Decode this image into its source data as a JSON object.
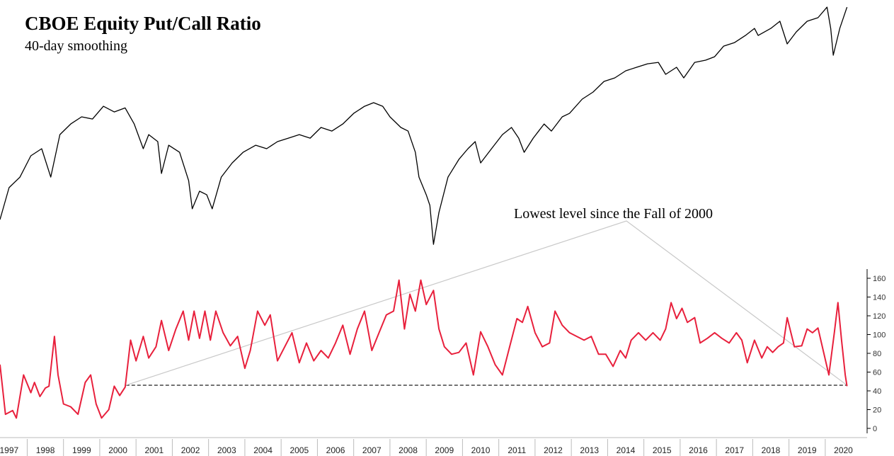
{
  "chart_data": {
    "type": "line",
    "title": "CBOE Equity Put/Call Ratio",
    "subtitle": "40-day smoothing",
    "annotation": "Lowest level since the Fall of 2000",
    "xlim": [
      1997.25,
      2020.9
    ],
    "xticks": [
      1997,
      1998,
      1999,
      2000,
      2001,
      2002,
      2003,
      2004,
      2005,
      2006,
      2007,
      2008,
      2009,
      2010,
      2011,
      2012,
      2013,
      2014,
      2015,
      2016,
      2017,
      2018,
      2019,
      2020
    ],
    "ylim": [
      0,
      160
    ],
    "yticks": [
      0,
      20,
      40,
      60,
      80,
      100,
      120,
      140,
      160
    ],
    "y2lim": [
      680,
      3400
    ],
    "y2log": true,
    "reference_line": {
      "value": 46,
      "x": [
        2000.72,
        2020.6
      ],
      "color": "#333333"
    },
    "series": [
      {
        "color": "#000000",
        "axis": "y2",
        "x": [
          1997.25,
          1997.5,
          1997.8,
          1998.1,
          1998.4,
          1998.65,
          1998.9,
          1999.2,
          1999.5,
          1999.8,
          2000.1,
          2000.4,
          2000.7,
          2000.95,
          2001.2,
          2001.35,
          2001.6,
          2001.7,
          2001.9,
          2002.2,
          2002.45,
          2002.55,
          2002.75,
          2002.95,
          2003.1,
          2003.35,
          2003.65,
          2003.95,
          2004.3,
          2004.6,
          2004.9,
          2005.2,
          2005.5,
          2005.8,
          2006.1,
          2006.4,
          2006.7,
          2007.0,
          2007.3,
          2007.55,
          2007.8,
          2008.0,
          2008.3,
          2008.5,
          2008.7,
          2008.8,
          2009.0,
          2009.1,
          2009.2,
          2009.35,
          2009.6,
          2009.9,
          2010.15,
          2010.35,
          2010.5,
          2010.8,
          2011.1,
          2011.35,
          2011.55,
          2011.7,
          2011.95,
          2012.25,
          2012.45,
          2012.75,
          2012.95,
          2013.3,
          2013.6,
          2013.9,
          2014.2,
          2014.5,
          2014.8,
          2015.1,
          2015.4,
          2015.6,
          2015.9,
          2016.1,
          2016.4,
          2016.7,
          2016.95,
          2017.2,
          2017.5,
          2017.8,
          2018.05,
          2018.15,
          2018.5,
          2018.75,
          2018.95,
          2019.2,
          2019.5,
          2019.8,
          2020.05,
          2020.15,
          2020.22,
          2020.4,
          2020.6
        ],
        "values": [
          809,
          1000,
          1073,
          1236,
          1296,
          1073,
          1423,
          1527,
          1601,
          1578,
          1718,
          1654,
          1699,
          1527,
          1296,
          1423,
          1358,
          1099,
          1326,
          1265,
          1048,
          869,
          977,
          954,
          869,
          1073,
          1179,
          1265,
          1326,
          1296,
          1358,
          1390,
          1423,
          1390,
          1492,
          1457,
          1527,
          1639,
          1718,
          1759,
          1718,
          1601,
          1492,
          1457,
          1265,
          1073,
          954,
          889,
          686,
          848,
          1073,
          1207,
          1296,
          1358,
          1179,
          1296,
          1423,
          1492,
          1390,
          1265,
          1390,
          1527,
          1457,
          1601,
          1639,
          1801,
          1888,
          2026,
          2074,
          2174,
          2226,
          2278,
          2300,
          2124,
          2226,
          2074,
          2300,
          2333,
          2388,
          2563,
          2623,
          2750,
          2883,
          2750,
          2883,
          3023,
          2600,
          2815,
          3023,
          3094,
          3320,
          2883,
          2411,
          2883,
          3320
        ]
      },
      {
        "color": "#e8203c",
        "x": [
          1997.25,
          1997.4,
          1997.6,
          1997.7,
          1997.9,
          1998.1,
          1998.2,
          1998.35,
          1998.5,
          1998.6,
          1998.75,
          1998.85,
          1999.0,
          1999.2,
          1999.4,
          1999.6,
          1999.75,
          1999.9,
          2000.05,
          2000.25,
          2000.4,
          2000.55,
          2000.7,
          2000.85,
          2001.0,
          2001.2,
          2001.35,
          2001.55,
          2001.7,
          2001.9,
          2002.1,
          2002.3,
          2002.45,
          2002.6,
          2002.75,
          2002.9,
          2003.05,
          2003.2,
          2003.4,
          2003.6,
          2003.8,
          2004.0,
          2004.15,
          2004.35,
          2004.55,
          2004.7,
          2004.9,
          2005.1,
          2005.3,
          2005.5,
          2005.7,
          2005.9,
          2006.1,
          2006.3,
          2006.5,
          2006.7,
          2006.9,
          2007.1,
          2007.3,
          2007.5,
          2007.7,
          2007.9,
          2008.1,
          2008.25,
          2008.4,
          2008.55,
          2008.7,
          2008.85,
          2009.0,
          2009.2,
          2009.35,
          2009.5,
          2009.7,
          2009.9,
          2010.1,
          2010.3,
          2010.5,
          2010.7,
          2010.9,
          2011.1,
          2011.3,
          2011.5,
          2011.65,
          2011.8,
          2012.0,
          2012.2,
          2012.4,
          2012.55,
          2012.75,
          2012.95,
          2013.15,
          2013.35,
          2013.55,
          2013.75,
          2013.95,
          2014.15,
          2014.35,
          2014.5,
          2014.65,
          2014.85,
          2015.05,
          2015.25,
          2015.45,
          2015.6,
          2015.75,
          2015.9,
          2016.05,
          2016.2,
          2016.4,
          2016.55,
          2016.75,
          2016.95,
          2017.15,
          2017.35,
          2017.55,
          2017.7,
          2017.85,
          2018.05,
          2018.25,
          2018.4,
          2018.55,
          2018.7,
          2018.85,
          2018.95,
          2019.15,
          2019.35,
          2019.5,
          2019.65,
          2019.8,
          2019.95,
          2020.1,
          2020.25,
          2020.35,
          2020.45,
          2020.55,
          2020.6
        ],
        "values": [
          68,
          15,
          19,
          11,
          57,
          38,
          49,
          34,
          43,
          45,
          98,
          57,
          26,
          23,
          15,
          49,
          57,
          26,
          11,
          20,
          45,
          35,
          44,
          94,
          72,
          98,
          75,
          87,
          115,
          83,
          106,
          125,
          94,
          125,
          96,
          125,
          94,
          125,
          102,
          88,
          98,
          64,
          83,
          125,
          110,
          121,
          72,
          87,
          102,
          70,
          91,
          72,
          83,
          75,
          91,
          110,
          79,
          106,
          125,
          83,
          102,
          121,
          125,
          158,
          106,
          143,
          125,
          158,
          132,
          147,
          106,
          87,
          79,
          81,
          91,
          57,
          103,
          87,
          68,
          57,
          87,
          117,
          113,
          130,
          102,
          87,
          91,
          125,
          110,
          102,
          98,
          94,
          98,
          79,
          79,
          66,
          83,
          75,
          94,
          102,
          94,
          102,
          94,
          106,
          134,
          117,
          128,
          113,
          118,
          91,
          96,
          102,
          96,
          91,
          102,
          94,
          70,
          94,
          75,
          87,
          81,
          87,
          91,
          118,
          87,
          88,
          106,
          102,
          107,
          82,
          57,
          102,
          134,
          94,
          57,
          45
        ]
      }
    ]
  }
}
